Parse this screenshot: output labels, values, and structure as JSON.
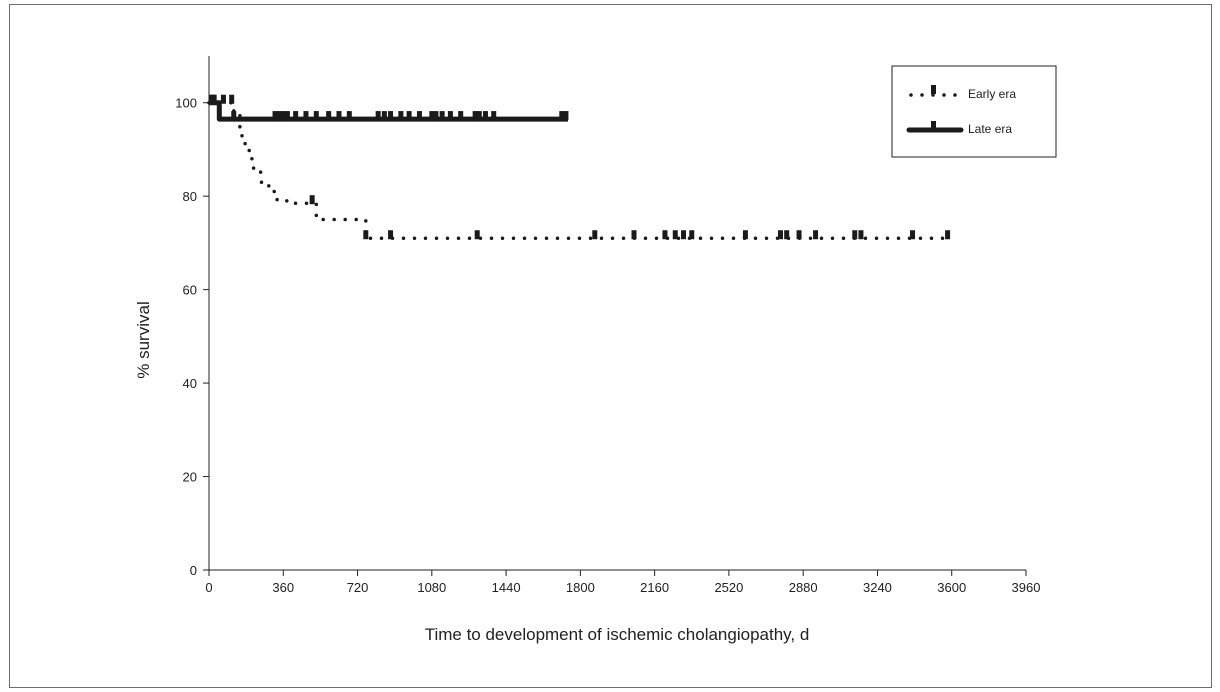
{
  "chart_data": {
    "type": "line",
    "title": "",
    "xlabel": "Time to development of ischemic cholangiopathy, d",
    "ylabel": "% survival",
    "xlim": [
      0,
      3960
    ],
    "ylim": [
      0,
      110
    ],
    "xticks": [
      0,
      360,
      720,
      1080,
      1440,
      1800,
      2160,
      2520,
      2880,
      3240,
      3600,
      3960
    ],
    "yticks": [
      0,
      20,
      40,
      60,
      80,
      100
    ],
    "legend_position": "top-right",
    "series": [
      {
        "name": "Early era",
        "style": "dotted",
        "color": "#1a1a1a",
        "points": [
          [
            0,
            100
          ],
          [
            120,
            100
          ],
          [
            120,
            98
          ],
          [
            150,
            98
          ],
          [
            150,
            94
          ],
          [
            160,
            94
          ],
          [
            160,
            92
          ],
          [
            175,
            92
          ],
          [
            175,
            90
          ],
          [
            195,
            90
          ],
          [
            195,
            88
          ],
          [
            215,
            88
          ],
          [
            215,
            86
          ],
          [
            250,
            86
          ],
          [
            250,
            83
          ],
          [
            290,
            83
          ],
          [
            290,
            81
          ],
          [
            330,
            81
          ],
          [
            330,
            79
          ],
          [
            400,
            79
          ],
          [
            400,
            78.5
          ],
          [
            520,
            78.5
          ],
          [
            520,
            75
          ],
          [
            760,
            75
          ],
          [
            760,
            71
          ],
          [
            3600,
            71
          ]
        ],
        "censor_x": [
          20,
          70,
          110,
          500,
          760,
          880,
          1300,
          1870,
          2060,
          2210,
          2260,
          2300,
          2340,
          2600,
          2770,
          2800,
          2860,
          2940,
          3130,
          3160,
          3410,
          3580
        ]
      },
      {
        "name": "Late era",
        "style": "solid",
        "color": "#1a1a1a",
        "points": [
          [
            0,
            100
          ],
          [
            50,
            100
          ],
          [
            50,
            96.5
          ],
          [
            1740,
            96.5
          ]
        ],
        "censor_x": [
          10,
          25,
          120,
          320,
          340,
          360,
          380,
          420,
          470,
          520,
          580,
          630,
          680,
          820,
          850,
          880,
          930,
          970,
          1020,
          1080,
          1100,
          1130,
          1170,
          1220,
          1290,
          1310,
          1340,
          1380,
          1710,
          1730
        ]
      }
    ]
  }
}
